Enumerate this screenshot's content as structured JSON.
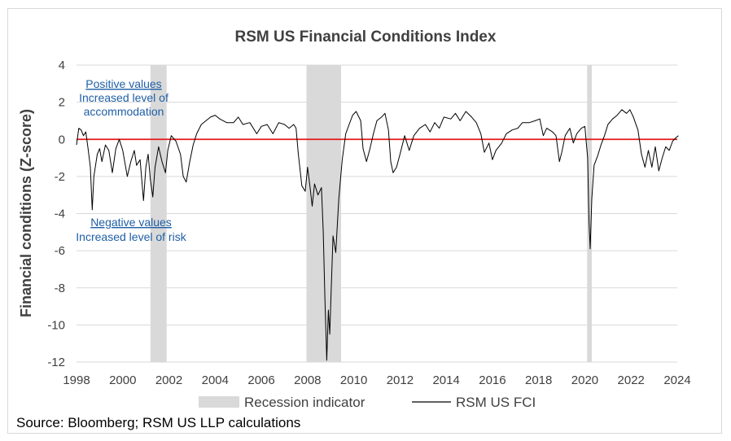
{
  "chart_data": {
    "type": "line",
    "title": "RSM US Financial Conditions Index",
    "ylabel": "Financial conditions (Z-score)",
    "xlabel": "",
    "xlim": [
      1998,
      2024
    ],
    "ylim": [
      -12,
      4
    ],
    "x_ticks": [
      "1998",
      "2000",
      "2002",
      "2004",
      "2006",
      "2008",
      "2010",
      "2012",
      "2014",
      "2016",
      "2018",
      "2020",
      "2022",
      "2024"
    ],
    "y_ticks": [
      "4",
      "2",
      "0",
      "-2",
      "-4",
      "-6",
      "-8",
      "-10",
      "-12"
    ],
    "grid": "horizontal",
    "legend_position": "bottom",
    "reference_line": {
      "y": 0,
      "color": "#e41a1c"
    },
    "recessions": [
      {
        "start": 2001.2,
        "end": 2001.9
      },
      {
        "start": 2007.95,
        "end": 2009.45
      },
      {
        "start": 2020.1,
        "end": 2020.3
      }
    ],
    "series": [
      {
        "name": "RSM US FCI",
        "color": "#000000",
        "points": [
          [
            1998.0,
            -0.3
          ],
          [
            1998.1,
            0.6
          ],
          [
            1998.2,
            0.5
          ],
          [
            1998.3,
            0.2
          ],
          [
            1998.4,
            0.4
          ],
          [
            1998.5,
            -0.5
          ],
          [
            1998.6,
            -1.5
          ],
          [
            1998.68,
            -3.8
          ],
          [
            1998.75,
            -2.0
          ],
          [
            1998.9,
            -0.8
          ],
          [
            1999.0,
            -0.5
          ],
          [
            1999.1,
            -1.2
          ],
          [
            1999.25,
            -0.3
          ],
          [
            1999.4,
            -0.6
          ],
          [
            1999.55,
            -1.8
          ],
          [
            1999.7,
            -0.5
          ],
          [
            1999.85,
            0.0
          ],
          [
            2000.0,
            -0.6
          ],
          [
            2000.2,
            -2.0
          ],
          [
            2000.35,
            -1.2
          ],
          [
            2000.5,
            -0.6
          ],
          [
            2000.6,
            -1.4
          ],
          [
            2000.75,
            -1.1
          ],
          [
            2000.9,
            -3.3
          ],
          [
            2001.0,
            -1.5
          ],
          [
            2001.1,
            -0.8
          ],
          [
            2001.2,
            -2.2
          ],
          [
            2001.3,
            -3.1
          ],
          [
            2001.4,
            -1.5
          ],
          [
            2001.55,
            -0.4
          ],
          [
            2001.7,
            -1.2
          ],
          [
            2001.85,
            -1.8
          ],
          [
            2001.95,
            -0.6
          ],
          [
            2002.1,
            0.2
          ],
          [
            2002.3,
            -0.1
          ],
          [
            2002.5,
            -0.8
          ],
          [
            2002.62,
            -2.0
          ],
          [
            2002.75,
            -2.3
          ],
          [
            2002.9,
            -1.2
          ],
          [
            2003.05,
            -0.3
          ],
          [
            2003.2,
            0.3
          ],
          [
            2003.4,
            0.8
          ],
          [
            2003.6,
            1.0
          ],
          [
            2003.8,
            1.2
          ],
          [
            2004.0,
            1.3
          ],
          [
            2004.2,
            1.1
          ],
          [
            2004.5,
            0.9
          ],
          [
            2004.8,
            0.9
          ],
          [
            2005.0,
            1.2
          ],
          [
            2005.2,
            0.8
          ],
          [
            2005.5,
            0.9
          ],
          [
            2005.8,
            0.3
          ],
          [
            2006.0,
            0.7
          ],
          [
            2006.25,
            0.8
          ],
          [
            2006.5,
            0.3
          ],
          [
            2006.75,
            0.9
          ],
          [
            2007.0,
            0.8
          ],
          [
            2007.2,
            0.6
          ],
          [
            2007.4,
            0.8
          ],
          [
            2007.5,
            0.6
          ],
          [
            2007.6,
            -0.8
          ],
          [
            2007.75,
            -2.5
          ],
          [
            2007.9,
            -2.8
          ],
          [
            2008.0,
            -1.5
          ],
          [
            2008.1,
            -2.5
          ],
          [
            2008.2,
            -3.6
          ],
          [
            2008.3,
            -2.4
          ],
          [
            2008.45,
            -3.0
          ],
          [
            2008.6,
            -2.6
          ],
          [
            2008.68,
            -5.0
          ],
          [
            2008.75,
            -8.5
          ],
          [
            2008.83,
            -11.9
          ],
          [
            2008.9,
            -9.2
          ],
          [
            2008.96,
            -10.5
          ],
          [
            2009.02,
            -8.2
          ],
          [
            2009.1,
            -5.2
          ],
          [
            2009.22,
            -6.1
          ],
          [
            2009.35,
            -3.2
          ],
          [
            2009.5,
            -1.1
          ],
          [
            2009.65,
            0.3
          ],
          [
            2009.8,
            0.8
          ],
          [
            2009.95,
            1.3
          ],
          [
            2010.1,
            1.5
          ],
          [
            2010.3,
            1.0
          ],
          [
            2010.4,
            -0.5
          ],
          [
            2010.55,
            -1.2
          ],
          [
            2010.7,
            -0.5
          ],
          [
            2010.85,
            0.3
          ],
          [
            2011.0,
            1.0
          ],
          [
            2011.2,
            1.2
          ],
          [
            2011.35,
            1.4
          ],
          [
            2011.5,
            0.5
          ],
          [
            2011.6,
            -1.2
          ],
          [
            2011.7,
            -1.8
          ],
          [
            2011.85,
            -1.5
          ],
          [
            2012.0,
            -0.8
          ],
          [
            2012.2,
            0.2
          ],
          [
            2012.4,
            -0.6
          ],
          [
            2012.6,
            0.2
          ],
          [
            2012.85,
            0.6
          ],
          [
            2013.1,
            0.8
          ],
          [
            2013.3,
            0.4
          ],
          [
            2013.5,
            0.9
          ],
          [
            2013.7,
            0.6
          ],
          [
            2013.9,
            1.2
          ],
          [
            2014.2,
            1.1
          ],
          [
            2014.4,
            1.4
          ],
          [
            2014.6,
            1.0
          ],
          [
            2014.85,
            1.5
          ],
          [
            2015.1,
            1.2
          ],
          [
            2015.3,
            0.9
          ],
          [
            2015.5,
            0.3
          ],
          [
            2015.65,
            -0.7
          ],
          [
            2015.85,
            -0.2
          ],
          [
            2016.0,
            -1.1
          ],
          [
            2016.15,
            -0.6
          ],
          [
            2016.4,
            -0.2
          ],
          [
            2016.6,
            0.3
          ],
          [
            2016.85,
            0.5
          ],
          [
            2017.1,
            0.6
          ],
          [
            2017.3,
            0.9
          ],
          [
            2017.6,
            0.9
          ],
          [
            2017.85,
            1.0
          ],
          [
            2018.05,
            1.1
          ],
          [
            2018.2,
            0.2
          ],
          [
            2018.35,
            0.6
          ],
          [
            2018.6,
            0.4
          ],
          [
            2018.75,
            0.2
          ],
          [
            2018.9,
            -1.2
          ],
          [
            2019.0,
            -0.7
          ],
          [
            2019.15,
            0.2
          ],
          [
            2019.35,
            0.6
          ],
          [
            2019.5,
            -0.2
          ],
          [
            2019.65,
            0.3
          ],
          [
            2019.85,
            0.6
          ],
          [
            2020.0,
            0.7
          ],
          [
            2020.12,
            -1.0
          ],
          [
            2020.18,
            -4.5
          ],
          [
            2020.23,
            -5.9
          ],
          [
            2020.3,
            -3.2
          ],
          [
            2020.4,
            -1.4
          ],
          [
            2020.55,
            -0.9
          ],
          [
            2020.7,
            -0.3
          ],
          [
            2020.85,
            0.2
          ],
          [
            2021.0,
            0.8
          ],
          [
            2021.2,
            1.1
          ],
          [
            2021.4,
            1.3
          ],
          [
            2021.6,
            1.6
          ],
          [
            2021.8,
            1.4
          ],
          [
            2021.95,
            1.6
          ],
          [
            2022.1,
            1.2
          ],
          [
            2022.3,
            0.5
          ],
          [
            2022.45,
            -0.8
          ],
          [
            2022.6,
            -1.5
          ],
          [
            2022.75,
            -0.6
          ],
          [
            2022.9,
            -1.5
          ],
          [
            2023.05,
            -0.4
          ],
          [
            2023.2,
            -1.7
          ],
          [
            2023.35,
            -1.0
          ],
          [
            2023.5,
            -0.4
          ],
          [
            2023.65,
            -0.6
          ],
          [
            2023.8,
            -0.1
          ],
          [
            2023.95,
            0.1
          ],
          [
            2024.05,
            0.2
          ]
        ]
      }
    ],
    "legend": [
      {
        "label": "Recession indicator",
        "color": "#d9d9d9",
        "kind": "bar"
      },
      {
        "label": "RSM US FCI",
        "color": "#000000",
        "kind": "line"
      }
    ],
    "annotations": {
      "positive_title": "Positive values",
      "positive_body_1": "Increased level of",
      "positive_body_2": "accommodation",
      "negative_title": "Negative values",
      "negative_body": "Increased level of risk"
    }
  },
  "source": "Source: Bloomberg; RSM US LLP calculations"
}
